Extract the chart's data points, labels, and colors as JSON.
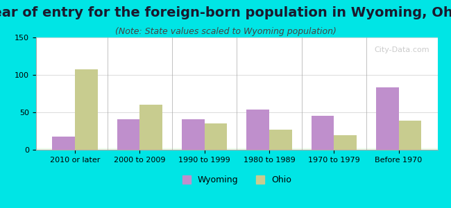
{
  "title": "Year of entry for the foreign-born population in Wyoming, Ohio",
  "subtitle": "(Note: State values scaled to Wyoming population)",
  "categories": [
    "2010 or later",
    "2000 to 2009",
    "1990 to 1999",
    "1980 to 1989",
    "1970 to 1979",
    "Before 1970"
  ],
  "wyoming_values": [
    18,
    41,
    41,
    54,
    45,
    83
  ],
  "ohio_values": [
    107,
    60,
    35,
    27,
    19,
    39
  ],
  "wyoming_color": "#bf8fcc",
  "ohio_color": "#c8cc8f",
  "ylim": [
    0,
    150
  ],
  "yticks": [
    0,
    50,
    100,
    150
  ],
  "background_color": "#00e5e5",
  "bar_width": 0.35,
  "title_fontsize": 14,
  "subtitle_fontsize": 9,
  "tick_fontsize": 8,
  "legend_fontsize": 9,
  "watermark": "City-Data.com"
}
